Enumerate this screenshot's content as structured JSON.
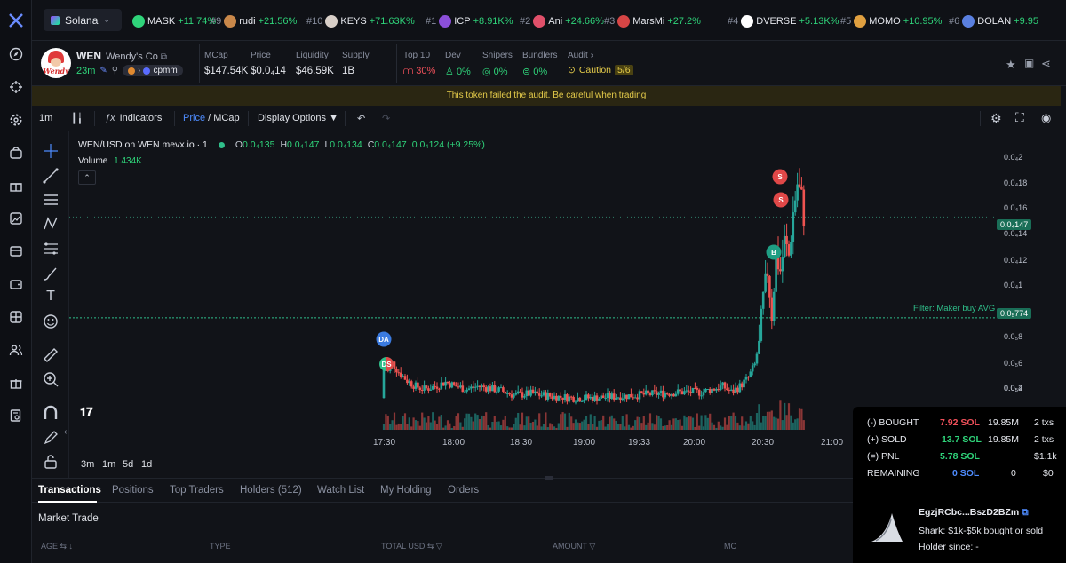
{
  "chain": {
    "name": "Solana"
  },
  "ticker": [
    {
      "rank": "",
      "name": "MASK",
      "pct": "+11.74%",
      "color": "#2fd47a"
    },
    {
      "rank": "#9",
      "name": "rudi",
      "pct": "+21.56%",
      "color": "#c9884a"
    },
    {
      "rank": "#10",
      "name": "KEYS",
      "pct": "+71.63K%",
      "color": "#d8cfc8"
    },
    {
      "rank": "#1",
      "name": "ICP",
      "pct": "+8.91K%",
      "color": "#8b4fd9"
    },
    {
      "rank": "#2",
      "name": "Ani",
      "pct": "+24.66%",
      "color": "#e0506a"
    },
    {
      "rank": "#3",
      "name": "MarsMi",
      "pct": "+27.2%",
      "color": "#d64545"
    },
    {
      "rank": "#4",
      "name": "DVERSE",
      "pct": "+5.13K%",
      "color": "#ffffff"
    },
    {
      "rank": "#5",
      "name": "MOMO",
      "pct": "+10.95%",
      "color": "#e0a040"
    },
    {
      "rank": "#6",
      "name": "DOLAN",
      "pct": "+9.95",
      "color": "#5a80e0"
    }
  ],
  "token": {
    "symbol": "WEN",
    "name": "Wendy's Co",
    "age": "23m",
    "tag": "cpmm",
    "logo_text": "Wendy"
  },
  "stats": {
    "mcap_label": "MCap",
    "mcap": "$147.54K",
    "price_label": "Price",
    "price": "$0.0₄14",
    "liq_label": "Liquidity",
    "liq": "$46.59K",
    "supply_label": "Supply",
    "supply": "1B"
  },
  "audit": {
    "top10_label": "Top 10",
    "top10": "30%",
    "dev_label": "Dev",
    "dev": "0%",
    "snipers_label": "Snipers",
    "snipers": "0%",
    "bundlers_label": "Bundlers",
    "bundlers": "0%",
    "audit_label": "Audit",
    "caution": "Caution",
    "score": "5/6"
  },
  "warning": "This token failed the audit. Be careful when trading",
  "toolbar": {
    "interval": "1m",
    "indicators": "Indicators",
    "price": "Price",
    "mcap": "MCap",
    "display": "Display Options"
  },
  "legend": {
    "title": "WEN/USD on WEN mevx.io · 1",
    "o": "0.0₄135",
    "h": "0.0₄147",
    "l": "0.0₄134",
    "c": "0.0₄147",
    "chg": "0.0₄124 (+9.25%)",
    "volume_label": "Volume",
    "volume": "1.434K"
  },
  "price_axis": [
    "0.0₄2",
    "0.0₄18",
    "0.0₄16",
    "0.0₄14",
    "0.0₄12",
    "0.0₄1",
    "0.0₅8",
    "0.0₅6",
    "0.0₅4",
    "0.0₅2"
  ],
  "current_price": "0.0₄147",
  "filter": {
    "label": "Filter: Maker buy AVG",
    "value": "0.0₅774"
  },
  "times": [
    "17:30",
    "18:00",
    "18:30",
    "19:00",
    "19:33",
    "20:00",
    "20:30",
    "21:00"
  ],
  "ranges": [
    "3m",
    "1m",
    "5d",
    "1d"
  ],
  "markers": {
    "da": "DA",
    "ds": "DS",
    "s": "S",
    "b": "B"
  },
  "chart_data": {
    "type": "candlestick",
    "title": "WEN/USD on WEN mevx.io · 1",
    "x": [
      "17:30",
      "18:00",
      "18:30",
      "19:00",
      "19:33",
      "20:00",
      "20:30",
      "21:00"
    ],
    "ylim": [
      0,
      2e-05
    ],
    "last": 1.47e-05,
    "filter_line": 7.74e-06
  },
  "tabs": [
    "Transactions",
    "Positions",
    "Top Traders",
    "Holders (512)",
    "Watch List",
    "My Holding",
    "Orders"
  ],
  "market_trade": "Market Trade",
  "columns": [
    "AGE",
    "TYPE",
    "TOTAL USD",
    "AMOUNT",
    "MC"
  ],
  "pnl": {
    "bought_label": "(-) BOUGHT",
    "bought": "7.92 SOL",
    "bought_tok": "19.85M",
    "bought_txs": "2 txs",
    "sold_label": "(+) SOLD",
    "sold": "13.7 SOL",
    "sold_tok": "19.85M",
    "sold_txs": "2 txs",
    "pnl_label": "(=) PNL",
    "pnl": "5.78 SOL",
    "pnl_usd": "$1.1k",
    "rem_label": "REMAINING",
    "rem": "0 SOL",
    "rem_tok": "0",
    "rem_usd": "$0"
  },
  "wallet": {
    "address": "EgzjRCbc...BszD2BZm",
    "desc": "Shark: $1k-$5k bought or sold",
    "holder": "Holder since: -"
  }
}
